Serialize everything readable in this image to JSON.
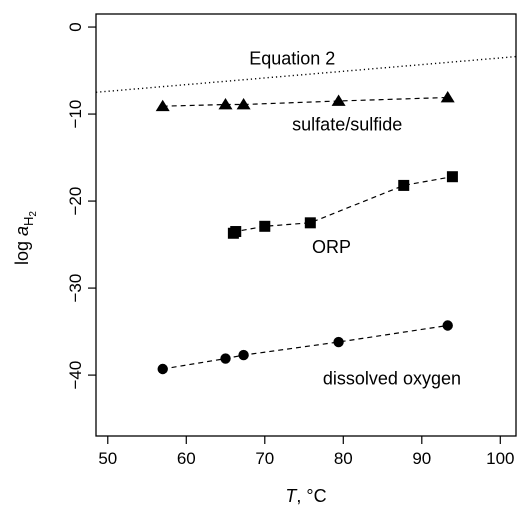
{
  "chart_data": {
    "type": "line",
    "xlabel_main": "T",
    "xlabel_unit": ", °C",
    "ylabel_main": "log ",
    "ylabel_italic": "a",
    "ylabel_sub": "H",
    "ylabel_subsub": "2",
    "xlim": [
      48.5,
      102
    ],
    "ylim": [
      -47,
      1.5
    ],
    "x_ticks": [
      50,
      60,
      70,
      80,
      90,
      100
    ],
    "y_ticks": [
      0,
      -10,
      -20,
      -30,
      -40
    ],
    "x_tick_labels": [
      "50",
      "60",
      "70",
      "80",
      "90",
      "100"
    ],
    "y_tick_labels": [
      "0",
      "−10",
      "−20",
      "−30",
      "−40"
    ],
    "series": [
      {
        "name": "sulfate/sulfide",
        "marker": "triangle",
        "line": "dashed",
        "x": [
          57.0,
          65.0,
          67.3,
          79.4,
          93.3
        ],
        "y": [
          -9.1,
          -8.9,
          -8.9,
          -8.5,
          -8.1
        ]
      },
      {
        "name": "ORP",
        "marker": "square",
        "line": "dashed",
        "x": [
          66.0,
          66.3,
          70.0,
          75.8,
          87.7,
          93.9
        ],
        "y": [
          -23.7,
          -23.5,
          -22.9,
          -22.5,
          -18.2,
          -17.2
        ]
      },
      {
        "name": "dissolved oxygen",
        "marker": "circle",
        "line": "dashed",
        "x": [
          57.0,
          65.0,
          67.3,
          79.4,
          93.3
        ],
        "y": [
          -39.3,
          -38.1,
          -37.7,
          -36.2,
          -34.3
        ]
      },
      {
        "name": "Equation 2",
        "marker": "none",
        "line": "dotted",
        "x": [
          48.5,
          102
        ],
        "y": [
          -7.5,
          -3.4
        ]
      }
    ],
    "annotations": [
      {
        "text": "Equation 2",
        "x": 73.5,
        "y": -3.6
      },
      {
        "text": "sulfate/sulfide",
        "x": 80.5,
        "y": -11.2
      },
      {
        "text": "ORP",
        "x": 78.5,
        "y": -25.3
      },
      {
        "text": "dissolved oxygen",
        "x": 86.2,
        "y": -40.4
      }
    ]
  }
}
